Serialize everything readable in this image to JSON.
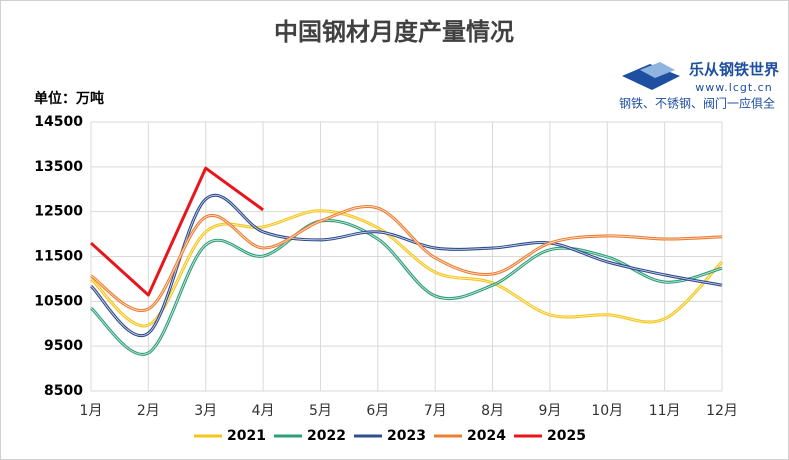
{
  "chart_data": {
    "type": "line",
    "title": "中国钢材月度产量情况",
    "unit_label": "单位：万吨",
    "categories": [
      "1月",
      "2月",
      "3月",
      "4月",
      "5月",
      "6月",
      "7月",
      "8月",
      "9月",
      "10月",
      "11月",
      "12月"
    ],
    "ylim": [
      8500,
      14500
    ],
    "yticks": [
      8500,
      9500,
      10500,
      11500,
      12500,
      13500,
      14500
    ],
    "grid": true,
    "legend": "bottom",
    "series": [
      {
        "name": "2021",
        "color": "#f5c518",
        "smooth": true,
        "values": [
          11000,
          9970,
          12050,
          12160,
          12520,
          12140,
          11150,
          10910,
          10200,
          10200,
          10110,
          11380
        ]
      },
      {
        "name": "2022",
        "color": "#2e9e78",
        "smooth": true,
        "values": [
          10350,
          9350,
          11760,
          11510,
          12290,
          11890,
          10620,
          10860,
          11650,
          11490,
          10930,
          11240
        ]
      },
      {
        "name": "2023",
        "color": "#2f4d8f",
        "smooth": true,
        "values": [
          10840,
          9790,
          12780,
          12050,
          11870,
          12050,
          11690,
          11690,
          11800,
          11380,
          11090,
          10860
        ]
      },
      {
        "name": "2024",
        "color": "#ed7d31",
        "smooth": true,
        "values": [
          11070,
          10330,
          12380,
          11690,
          12290,
          12580,
          11470,
          11110,
          11800,
          11960,
          11890,
          11940
        ]
      },
      {
        "name": "2025",
        "color": "#e8161b",
        "smooth": false,
        "values": [
          11800,
          10640,
          13470,
          12540,
          null,
          null,
          null,
          null,
          null,
          null,
          null,
          null
        ]
      }
    ]
  },
  "logo": {
    "name": "乐从钢铁世界",
    "url": "www.lcgt.cn",
    "slogan": "钢铁、不锈钢、阀门一应俱全"
  }
}
